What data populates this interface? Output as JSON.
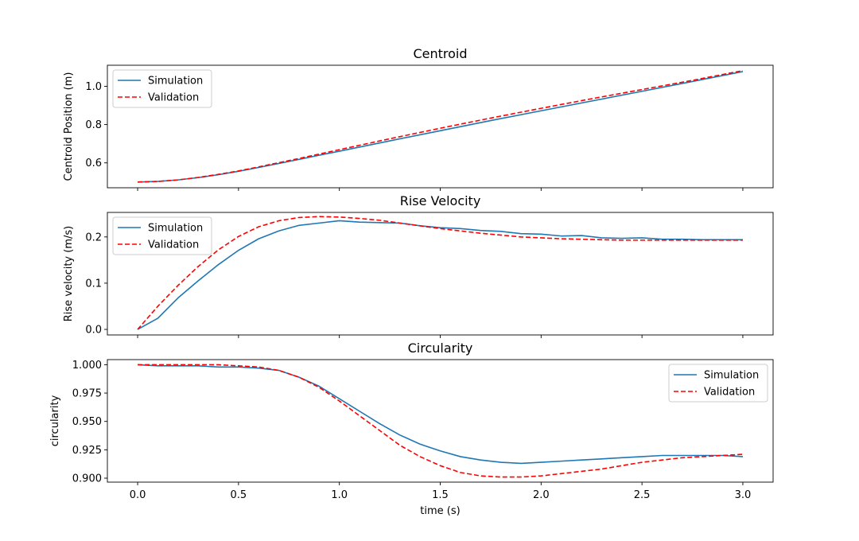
{
  "chart_data": [
    {
      "type": "line",
      "title": "Centroid",
      "xlabel": "",
      "ylabel": "Centroid Position (m)",
      "xlim": [
        -0.15,
        3.15
      ],
      "ylim": [
        0.47,
        1.11
      ],
      "xticks": [
        0.0,
        0.5,
        1.0,
        1.5,
        2.0,
        2.5,
        3.0
      ],
      "xticklabels": [],
      "yticks": [
        0.6,
        0.8,
        1.0
      ],
      "yticklabels": [
        "0.6",
        "0.8",
        "1.0"
      ],
      "legend_position": "upper-left",
      "x": [
        0.0,
        0.1,
        0.2,
        0.3,
        0.4,
        0.5,
        0.6,
        0.7,
        0.8,
        0.9,
        1.0,
        1.25,
        1.5,
        1.75,
        2.0,
        2.25,
        2.5,
        2.75,
        3.0
      ],
      "series": [
        {
          "name": "Simulation",
          "color": "#1f77b4",
          "style": "solid",
          "values": [
            0.5,
            0.503,
            0.511,
            0.523,
            0.538,
            0.556,
            0.576,
            0.597,
            0.618,
            0.64,
            0.661,
            0.715,
            0.768,
            0.821,
            0.872,
            0.923,
            0.974,
            1.025,
            1.077
          ]
        },
        {
          "name": "Validation",
          "color": "#ff0000",
          "style": "dashed",
          "values": [
            0.5,
            0.503,
            0.511,
            0.524,
            0.54,
            0.558,
            0.579,
            0.601,
            0.623,
            0.646,
            0.669,
            0.726,
            0.781,
            0.834,
            0.885,
            0.935,
            0.983,
            1.031,
            1.082
          ]
        }
      ]
    },
    {
      "type": "line",
      "title": "Rise Velocity",
      "xlabel": "",
      "ylabel": "Rise velocity (m/s)",
      "xlim": [
        -0.15,
        3.15
      ],
      "ylim": [
        -0.012,
        0.253
      ],
      "xticks": [
        0.0,
        0.5,
        1.0,
        1.5,
        2.0,
        2.5,
        3.0
      ],
      "xticklabels": [],
      "yticks": [
        0.0,
        0.1,
        0.2
      ],
      "yticklabels": [
        "0.0",
        "0.1",
        "0.2"
      ],
      "legend_position": "upper-left",
      "x": [
        0.0,
        0.1,
        0.2,
        0.3,
        0.4,
        0.5,
        0.6,
        0.7,
        0.8,
        0.9,
        1.0,
        1.1,
        1.2,
        1.3,
        1.4,
        1.5,
        1.6,
        1.7,
        1.8,
        1.9,
        2.0,
        2.1,
        2.2,
        2.3,
        2.4,
        2.5,
        2.6,
        2.7,
        2.8,
        2.9,
        3.0
      ],
      "series": [
        {
          "name": "Simulation",
          "color": "#1f77b4",
          "style": "solid",
          "values": [
            0.0,
            0.024,
            0.068,
            0.105,
            0.14,
            0.171,
            0.196,
            0.213,
            0.225,
            0.23,
            0.235,
            0.232,
            0.231,
            0.23,
            0.224,
            0.22,
            0.218,
            0.214,
            0.212,
            0.207,
            0.206,
            0.202,
            0.203,
            0.198,
            0.197,
            0.198,
            0.195,
            0.195,
            0.194,
            0.194,
            0.194
          ]
        },
        {
          "name": "Validation",
          "color": "#ff0000",
          "style": "dashed",
          "values": [
            0.0,
            0.05,
            0.095,
            0.136,
            0.172,
            0.201,
            0.222,
            0.235,
            0.242,
            0.244,
            0.243,
            0.24,
            0.236,
            0.23,
            0.224,
            0.218,
            0.213,
            0.208,
            0.204,
            0.2,
            0.198,
            0.196,
            0.195,
            0.194,
            0.193,
            0.193,
            0.193,
            0.193,
            0.193,
            0.193,
            0.193
          ]
        }
      ]
    },
    {
      "type": "line",
      "title": "Circularity",
      "xlabel": "time (s)",
      "ylabel": "circularity",
      "xlim": [
        -0.15,
        3.15
      ],
      "ylim": [
        0.8965,
        1.0045
      ],
      "xticks": [
        0.0,
        0.5,
        1.0,
        1.5,
        2.0,
        2.5,
        3.0
      ],
      "xticklabels": [
        "0.0",
        "0.5",
        "1.0",
        "1.5",
        "2.0",
        "2.5",
        "3.0"
      ],
      "yticks": [
        0.9,
        0.925,
        0.95,
        0.975,
        1.0
      ],
      "yticklabels": [
        "0.900",
        "0.925",
        "0.950",
        "0.975",
        "1.000"
      ],
      "legend_position": "upper-right",
      "x": [
        0.0,
        0.1,
        0.2,
        0.3,
        0.4,
        0.5,
        0.6,
        0.7,
        0.8,
        0.9,
        1.0,
        1.1,
        1.2,
        1.3,
        1.4,
        1.5,
        1.6,
        1.7,
        1.8,
        1.9,
        2.0,
        2.1,
        2.2,
        2.3,
        2.4,
        2.5,
        2.6,
        2.7,
        2.8,
        2.9,
        3.0
      ],
      "series": [
        {
          "name": "Simulation",
          "color": "#1f77b4",
          "style": "solid",
          "values": [
            1.0,
            0.999,
            0.999,
            0.999,
            0.998,
            0.998,
            0.997,
            0.995,
            0.989,
            0.981,
            0.97,
            0.959,
            0.948,
            0.938,
            0.93,
            0.924,
            0.919,
            0.916,
            0.914,
            0.913,
            0.914,
            0.915,
            0.916,
            0.917,
            0.918,
            0.919,
            0.92,
            0.92,
            0.92,
            0.92,
            0.919
          ]
        },
        {
          "name": "Validation",
          "color": "#ff0000",
          "style": "dashed",
          "values": [
            1.0,
            1.0,
            1.0,
            1.0,
            1.0,
            0.999,
            0.998,
            0.995,
            0.989,
            0.98,
            0.968,
            0.955,
            0.942,
            0.929,
            0.919,
            0.911,
            0.905,
            0.902,
            0.901,
            0.901,
            0.902,
            0.904,
            0.906,
            0.908,
            0.911,
            0.914,
            0.916,
            0.918,
            0.919,
            0.92,
            0.921
          ]
        }
      ]
    }
  ]
}
